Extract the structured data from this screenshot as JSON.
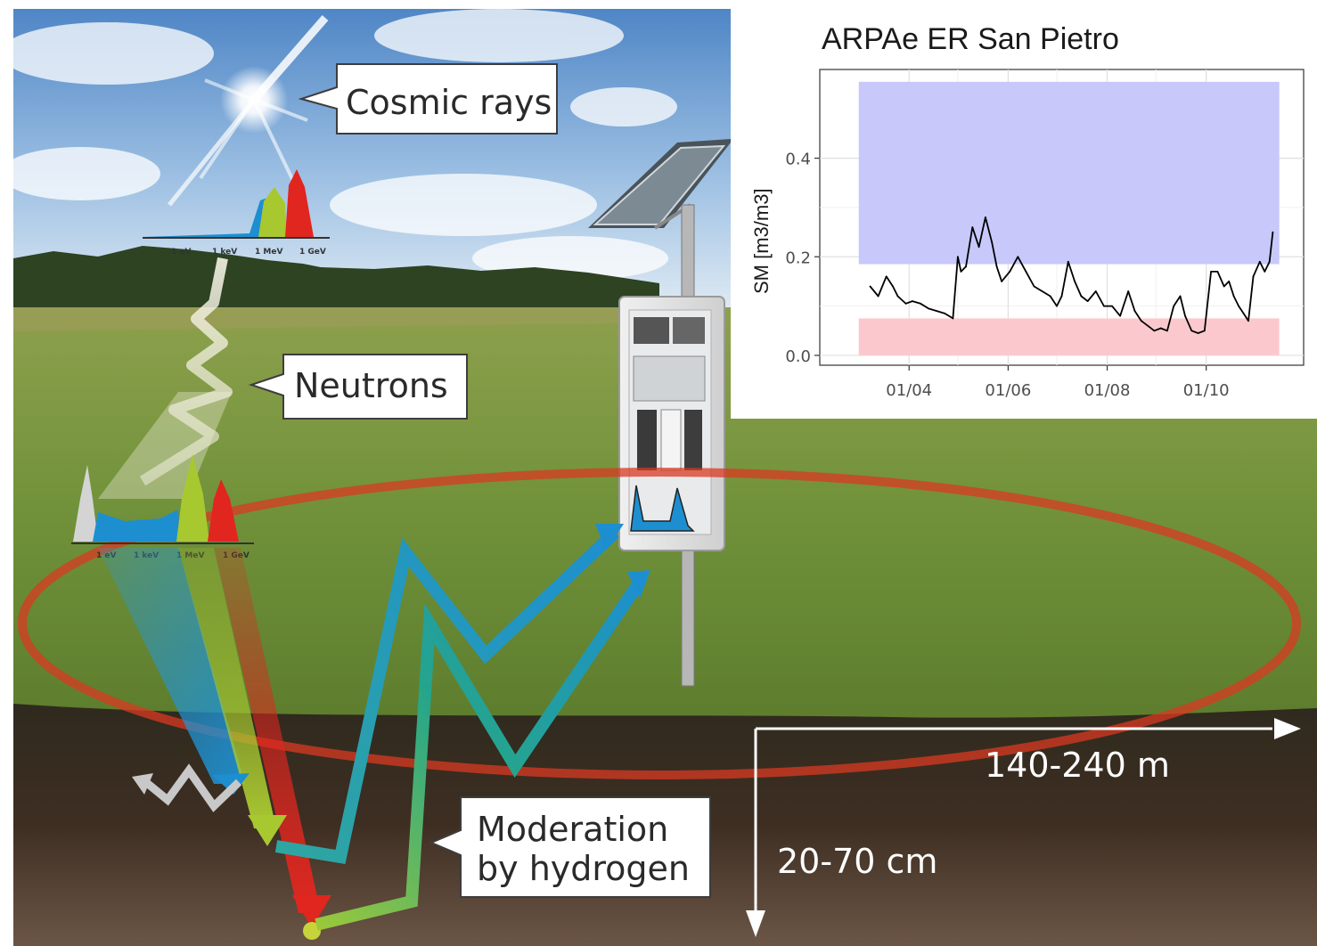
{
  "callouts": {
    "cosmic_rays": "Cosmic rays",
    "neutrons": "Neutrons",
    "moderation_line1": "Moderation",
    "moderation_line2": "by hydrogen"
  },
  "spectrum_ticks": [
    "1 eV",
    "1 keV",
    "1 MeV",
    "1 GeV"
  ],
  "dimensions": {
    "horizontal": "140-240 m",
    "vertical": "20-70 cm"
  },
  "colors": {
    "sky_top": "#5f93cf",
    "grass": "#7f9a3c",
    "soil": "#3a2b21",
    "neutron_blue": "#1d8fd0",
    "neutron_green": "#a8c830",
    "neutron_red": "#e0261f",
    "neutron_gray": "#c8c8c8",
    "footprint_red": "#d93a22"
  },
  "chart_data": {
    "type": "line",
    "title": "ARPAe ER San Pietro",
    "xlabel": "",
    "ylabel": "SM [m3/m3]",
    "x_ticks": [
      "01/04",
      "01/06",
      "01/08",
      "01/10"
    ],
    "y_ticks": [
      "0.0",
      "0.2",
      "0.4"
    ],
    "xlim": [
      "2021-02-05",
      "2021-11-30"
    ],
    "ylim": [
      -0.02,
      0.58
    ],
    "grid": true,
    "bands": [
      {
        "name": "",
        "color": "#c8c8fb",
        "y_from": 0.185,
        "y_to": 0.555,
        "x_from": "2021-03-01",
        "x_to": "2021-11-15"
      },
      {
        "name": "",
        "color": "#fbc9cd",
        "y_from": 0.0,
        "y_to": 0.075,
        "x_from": "2021-03-01",
        "x_to": "2021-11-15"
      }
    ],
    "series": [
      {
        "name": "",
        "color": "#000000",
        "x": [
          "2021-03-08",
          "2021-03-13",
          "2021-03-18",
          "2021-03-22",
          "2021-03-25",
          "2021-03-30",
          "2021-04-03",
          "2021-04-08",
          "2021-04-13",
          "2021-04-18",
          "2021-04-23",
          "2021-04-28",
          "2021-05-01",
          "2021-05-03",
          "2021-05-06",
          "2021-05-10",
          "2021-05-14",
          "2021-05-18",
          "2021-05-22",
          "2021-05-25",
          "2021-05-28",
          "2021-06-02",
          "2021-06-07",
          "2021-06-12",
          "2021-06-17",
          "2021-06-22",
          "2021-06-27",
          "2021-07-01",
          "2021-07-04",
          "2021-07-08",
          "2021-07-12",
          "2021-07-16",
          "2021-07-20",
          "2021-07-25",
          "2021-07-30",
          "2021-08-04",
          "2021-08-09",
          "2021-08-14",
          "2021-08-18",
          "2021-08-22",
          "2021-08-26",
          "2021-08-30",
          "2021-09-03",
          "2021-09-07",
          "2021-09-11",
          "2021-09-15",
          "2021-09-18",
          "2021-09-22",
          "2021-09-26",
          "2021-09-30",
          "2021-10-04",
          "2021-10-08",
          "2021-10-12",
          "2021-10-15",
          "2021-10-18",
          "2021-10-21",
          "2021-10-24",
          "2021-10-27",
          "2021-10-30",
          "2021-11-03",
          "2021-11-06",
          "2021-11-09",
          "2021-11-11"
        ],
        "y": [
          0.14,
          0.12,
          0.16,
          0.14,
          0.12,
          0.105,
          0.11,
          0.105,
          0.095,
          0.09,
          0.085,
          0.075,
          0.2,
          0.17,
          0.18,
          0.26,
          0.22,
          0.28,
          0.23,
          0.18,
          0.15,
          0.17,
          0.2,
          0.17,
          0.14,
          0.13,
          0.12,
          0.1,
          0.12,
          0.19,
          0.15,
          0.12,
          0.11,
          0.13,
          0.1,
          0.1,
          0.08,
          0.13,
          0.09,
          0.07,
          0.06,
          0.05,
          0.055,
          0.05,
          0.1,
          0.12,
          0.08,
          0.05,
          0.045,
          0.05,
          0.17,
          0.17,
          0.14,
          0.15,
          0.12,
          0.1,
          0.085,
          0.07,
          0.16,
          0.19,
          0.17,
          0.19,
          0.25
        ]
      }
    ]
  }
}
